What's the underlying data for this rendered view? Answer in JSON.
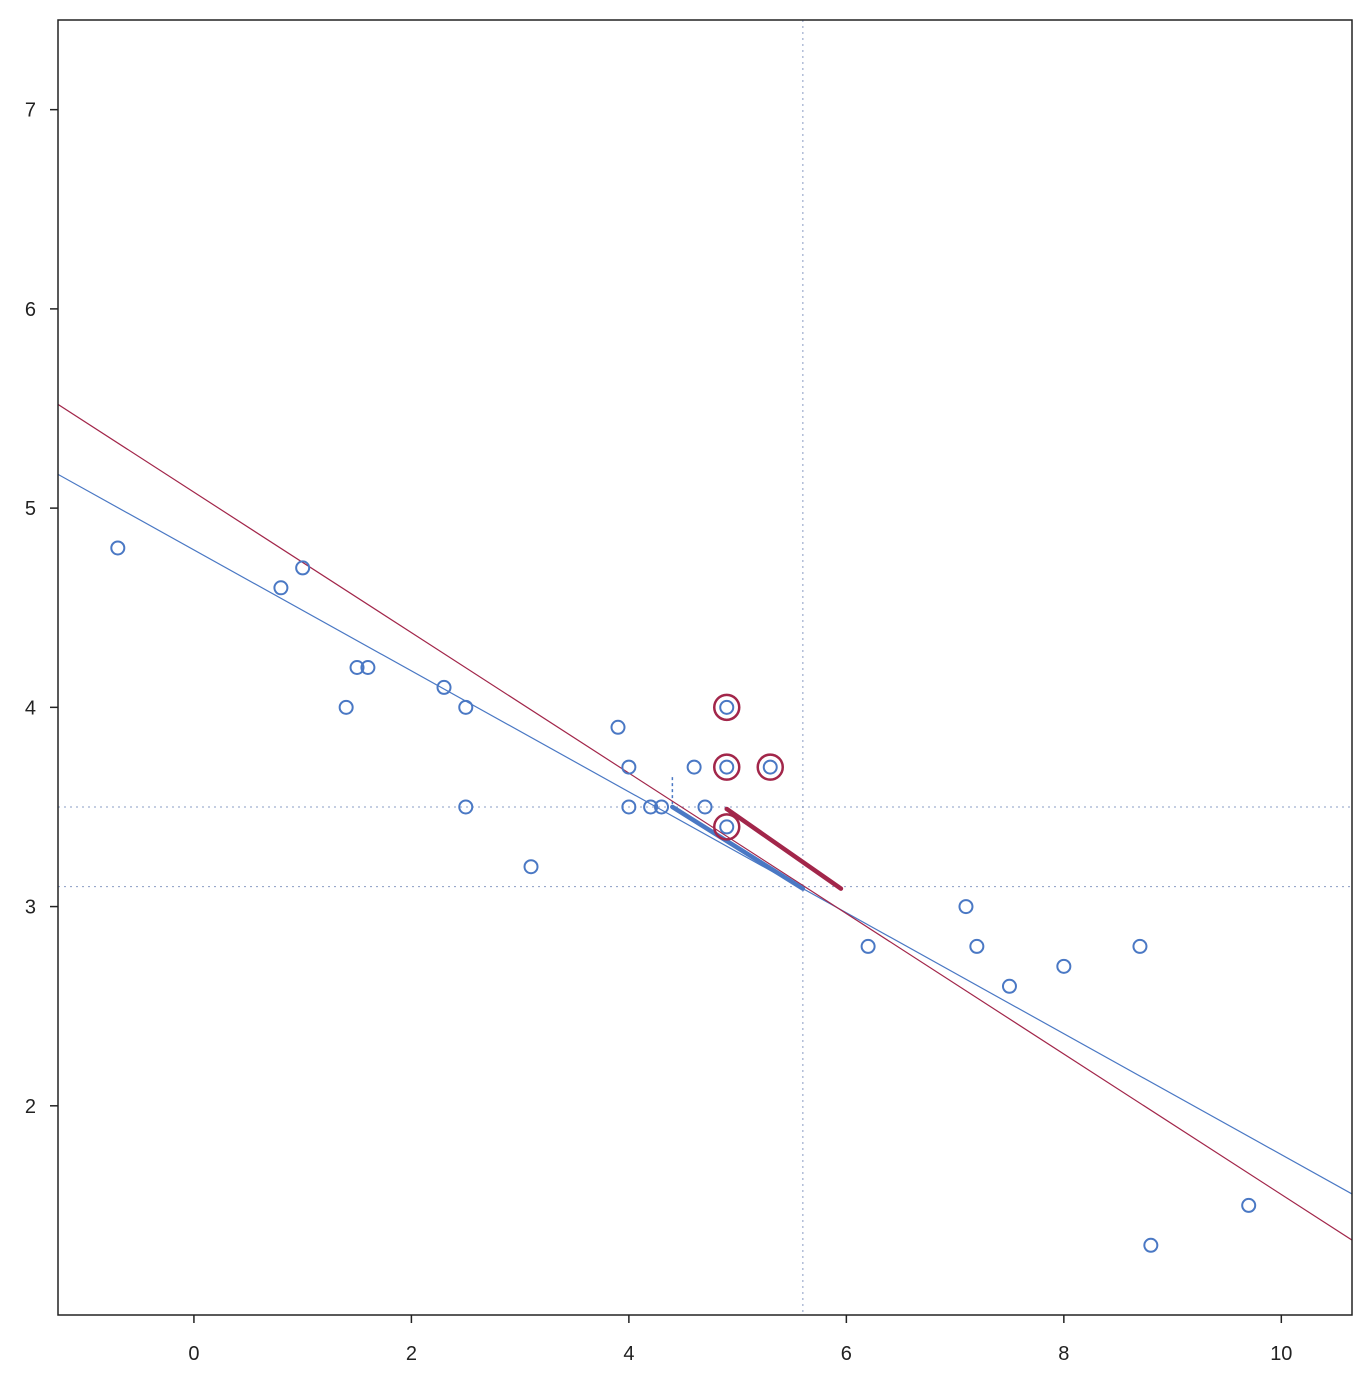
{
  "chart_data": {
    "type": "scatter",
    "title": "",
    "xlabel": "",
    "ylabel": "",
    "xlim": [
      -1.25,
      10.65
    ],
    "ylim": [
      0.95,
      7.45
    ],
    "grid": false,
    "x_ticks": [
      0,
      2,
      4,
      6,
      8,
      10
    ],
    "x_tick_labels": [
      "0",
      "2",
      "4",
      "6",
      "8",
      "10"
    ],
    "y_ticks": [
      2,
      3,
      4,
      5,
      6,
      7
    ],
    "y_tick_labels": [
      "2",
      "3",
      "4",
      "5",
      "6",
      "7"
    ],
    "colors": {
      "primary": "#4a78c4",
      "highlight": "#a2264a",
      "axis": "#222222"
    },
    "points": [
      [
        -0.7,
        4.8
      ],
      [
        0.8,
        4.6
      ],
      [
        1.0,
        4.7
      ],
      [
        1.5,
        4.2
      ],
      [
        1.6,
        4.2
      ],
      [
        1.4,
        4.0
      ],
      [
        2.3,
        4.1
      ],
      [
        2.5,
        4.0
      ],
      [
        2.5,
        3.5
      ],
      [
        3.1,
        3.2
      ],
      [
        3.9,
        3.9
      ],
      [
        4.0,
        3.7
      ],
      [
        4.0,
        3.5
      ],
      [
        4.2,
        3.5
      ],
      [
        4.3,
        3.5
      ],
      [
        4.6,
        3.7
      ],
      [
        4.7,
        3.5
      ],
      [
        4.9,
        4.0
      ],
      [
        4.9,
        3.7
      ],
      [
        4.9,
        3.4
      ],
      [
        5.3,
        3.7
      ],
      [
        6.2,
        2.8
      ],
      [
        7.1,
        3.0
      ],
      [
        7.2,
        2.8
      ],
      [
        7.5,
        2.6
      ],
      [
        8.0,
        2.7
      ],
      [
        8.7,
        2.8
      ],
      [
        8.8,
        1.3
      ],
      [
        9.7,
        1.5
      ]
    ],
    "highlighted_points": [
      [
        4.9,
        4.0
      ],
      [
        4.9,
        3.7
      ],
      [
        5.3,
        3.7
      ],
      [
        4.9,
        3.4
      ]
    ],
    "lines": [
      {
        "color": "#4a78c4",
        "intercept": 4.79,
        "slope": -0.3035
      },
      {
        "color": "#a2264a",
        "intercept": 5.08,
        "slope": -0.3525
      }
    ],
    "reference_lines": {
      "vertical_x": 5.6,
      "horizontal_y": [
        3.5,
        3.1
      ]
    },
    "small_guides": {
      "vertical_x": 4.4,
      "y_from": 3.5,
      "y_to": 3.65
    },
    "segments": [
      {
        "color": "#4a78c4",
        "x0": 4.4,
        "y0": 3.5,
        "x1": 5.6,
        "y1": 3.09
      },
      {
        "color": "#a2264a",
        "x0": 4.9,
        "y0": 3.49,
        "x1": 5.95,
        "y1": 3.09
      }
    ]
  }
}
